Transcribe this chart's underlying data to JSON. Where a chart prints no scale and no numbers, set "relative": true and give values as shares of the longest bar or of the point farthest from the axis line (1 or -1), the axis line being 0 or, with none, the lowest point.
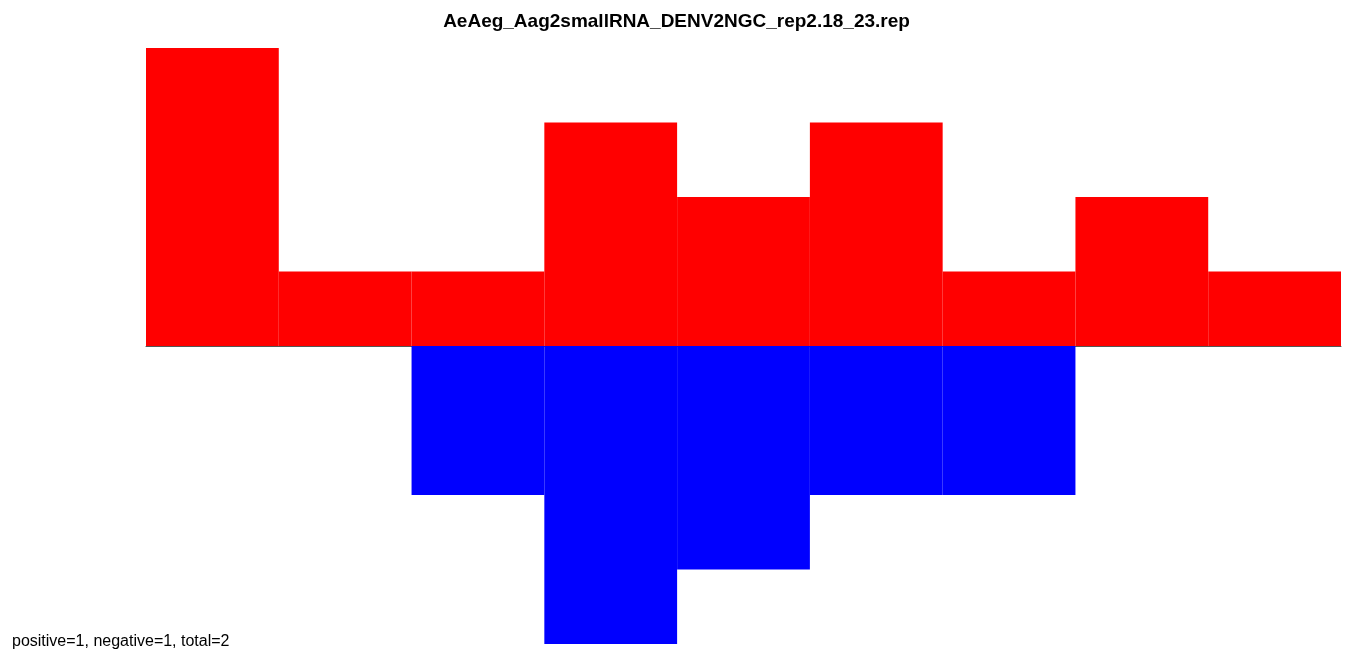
{
  "chart_data": {
    "type": "bar",
    "title": "AeAeg_Aag2smallRNA_DENV2NGC_rep2.18_23.rep",
    "relative": true,
    "stacked": true,
    "categories": [
      null,
      null,
      null,
      null,
      null,
      null,
      null,
      null,
      null
    ],
    "series": [
      {
        "color": "#ff0000",
        "values": [
          1,
          0.25,
          0.25,
          0.75,
          0.5,
          0.75,
          0.25,
          0.5,
          0.25
        ]
      },
      {
        "color": "#0000ff",
        "values": [
          0,
          0,
          -0.5,
          -1,
          -0.75,
          -0.5,
          -0.5,
          0,
          0
        ]
      }
    ],
    "annotations": [
      "positive=1, negative=1, total=2"
    ]
  }
}
